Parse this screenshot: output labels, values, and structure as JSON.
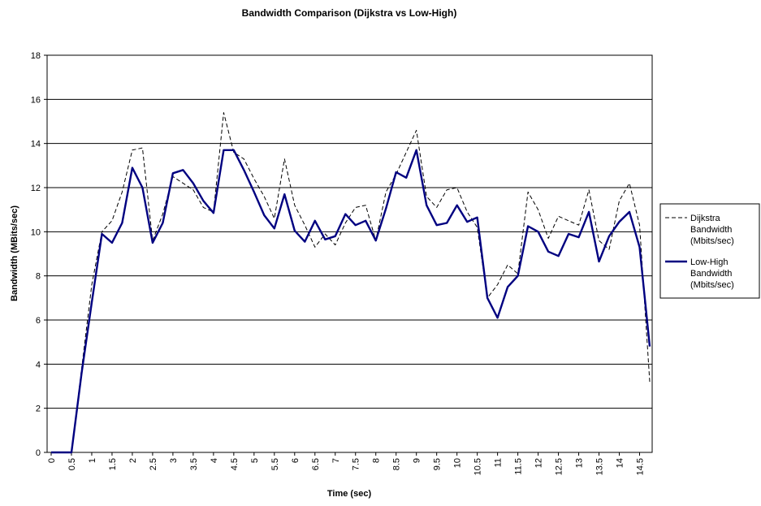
{
  "chart_data": {
    "type": "line",
    "title": "Bandwidth Comparison (Dijkstra vs Low-High)",
    "xlabel": "Time (sec)",
    "ylabel": "Bandwidth (MBits/sec)",
    "ylim": [
      0,
      18
    ],
    "yticks": [
      0,
      2,
      4,
      6,
      8,
      10,
      12,
      14,
      16,
      18
    ],
    "x_tick_labels": [
      "0",
      "0.5",
      "1",
      "1.5",
      "2",
      "2.5",
      "3",
      "3.5",
      "4",
      "4.5",
      "5",
      "5.5",
      "6",
      "6.5",
      "7",
      "7.5",
      "8",
      "8.5",
      "9",
      "9.5",
      "10",
      "10.5",
      "11",
      "11.5",
      "12",
      "12.5",
      "13",
      "13.5",
      "14",
      "14.5"
    ],
    "grid": "horizontal",
    "legend_position": "right",
    "x": [
      0,
      0.25,
      0.5,
      0.75,
      1,
      1.25,
      1.5,
      1.75,
      2,
      2.25,
      2.5,
      2.75,
      3,
      3.25,
      3.5,
      3.75,
      4,
      4.25,
      4.5,
      4.75,
      5,
      5.25,
      5.5,
      5.75,
      6,
      6.25,
      6.5,
      6.75,
      7,
      7.25,
      7.5,
      7.75,
      8,
      8.25,
      8.5,
      8.75,
      9,
      9.25,
      9.5,
      9.75,
      10,
      10.25,
      10.5,
      10.75,
      11,
      11.25,
      11.5,
      11.75,
      12,
      12.25,
      12.5,
      12.75,
      13,
      13.25,
      13.5,
      13.75,
      14,
      14.25,
      14.5,
      14.75
    ],
    "series": [
      {
        "name": "Dijkstra Bandwidth (Mbits/sec)",
        "name_lines": [
          "Dijkstra",
          "Bandwidth",
          "(Mbits/sec)"
        ],
        "color": "#000000",
        "style": "dashed",
        "values": [
          0,
          0,
          0,
          3.8,
          7.6,
          10.0,
          10.5,
          11.8,
          13.7,
          13.8,
          9.6,
          10.8,
          12.5,
          12.2,
          11.9,
          11.1,
          10.9,
          15.4,
          13.6,
          13.3,
          12.4,
          11.6,
          10.6,
          13.3,
          11.2,
          10.3,
          9.3,
          9.9,
          9.4,
          10.4,
          11.1,
          11.2,
          9.6,
          11.8,
          12.6,
          13.6,
          14.6,
          11.6,
          11.1,
          11.9,
          12.0,
          10.9,
          10.2,
          7.0,
          7.6,
          8.5,
          8.1,
          11.8,
          11.0,
          9.7,
          10.7,
          10.5,
          10.3,
          11.9,
          9.6,
          9.2,
          11.4,
          12.2,
          10.3,
          3.2
        ]
      },
      {
        "name": "Low-High Bandwidth (Mbits/sec)",
        "name_lines": [
          "Low-High",
          "Bandwidth",
          "(Mbits/sec)"
        ],
        "color": "#000080",
        "style": "solid",
        "values": [
          0,
          0,
          0,
          3.6,
          6.8,
          9.9,
          9.5,
          10.4,
          12.9,
          12.0,
          9.5,
          10.4,
          12.65,
          12.8,
          12.2,
          11.4,
          10.85,
          13.7,
          13.7,
          12.8,
          11.8,
          10.75,
          10.15,
          11.7,
          10.05,
          9.55,
          10.5,
          9.65,
          9.8,
          10.8,
          10.3,
          10.5,
          9.6,
          11.05,
          12.7,
          12.45,
          13.7,
          11.2,
          10.3,
          10.4,
          11.2,
          10.45,
          10.65,
          7.0,
          6.1,
          7.5,
          8.0,
          10.25,
          10.0,
          9.1,
          8.9,
          9.9,
          9.75,
          10.9,
          8.65,
          9.8,
          10.45,
          10.9,
          9.3,
          4.8
        ]
      }
    ]
  }
}
